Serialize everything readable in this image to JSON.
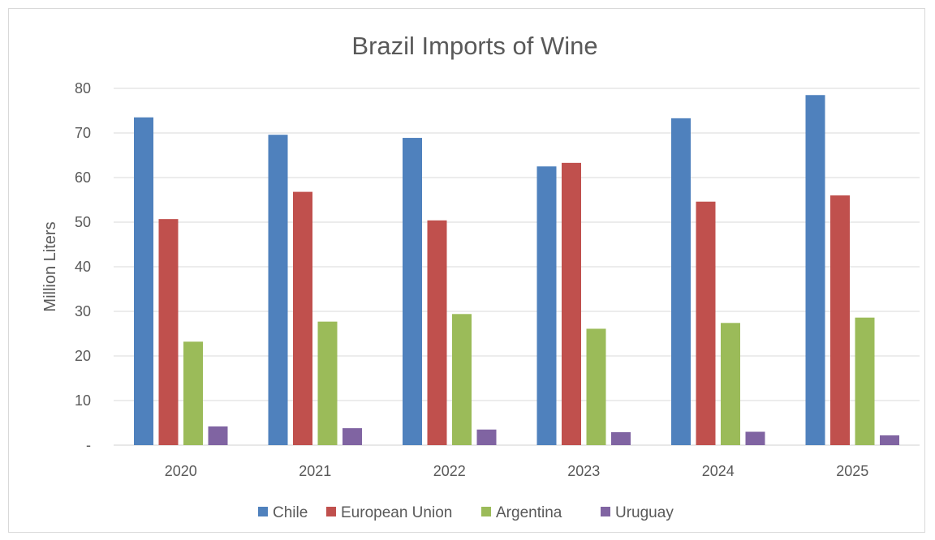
{
  "chart_data": {
    "type": "bar",
    "title": "Brazil Imports of Wine",
    "xlabel": "",
    "ylabel": "Million Liters",
    "categories": [
      "2020",
      "2021",
      "2022",
      "2023",
      "2024",
      "2025"
    ],
    "ylim": [
      0,
      80
    ],
    "yticks": [
      0,
      10,
      20,
      30,
      40,
      50,
      60,
      70,
      80
    ],
    "ytick_labels": [
      "-",
      "10",
      "20",
      "30",
      "40",
      "50",
      "60",
      "70",
      "80"
    ],
    "grid": true,
    "legend_position": "bottom",
    "series": [
      {
        "name": "Chile",
        "color": "#4f81bd",
        "values": [
          73.5,
          69.6,
          68.9,
          62.5,
          73.3,
          78.5
        ]
      },
      {
        "name": "European Union",
        "color": "#c0504d",
        "values": [
          50.7,
          56.8,
          50.4,
          63.3,
          54.6,
          56.0
        ]
      },
      {
        "name": "Argentina",
        "color": "#9bbb59",
        "values": [
          23.2,
          27.7,
          29.4,
          26.1,
          27.4,
          28.6
        ]
      },
      {
        "name": "Uruguay",
        "color": "#8064a2",
        "values": [
          4.2,
          3.8,
          3.5,
          2.9,
          3.0,
          2.2
        ]
      }
    ]
  }
}
